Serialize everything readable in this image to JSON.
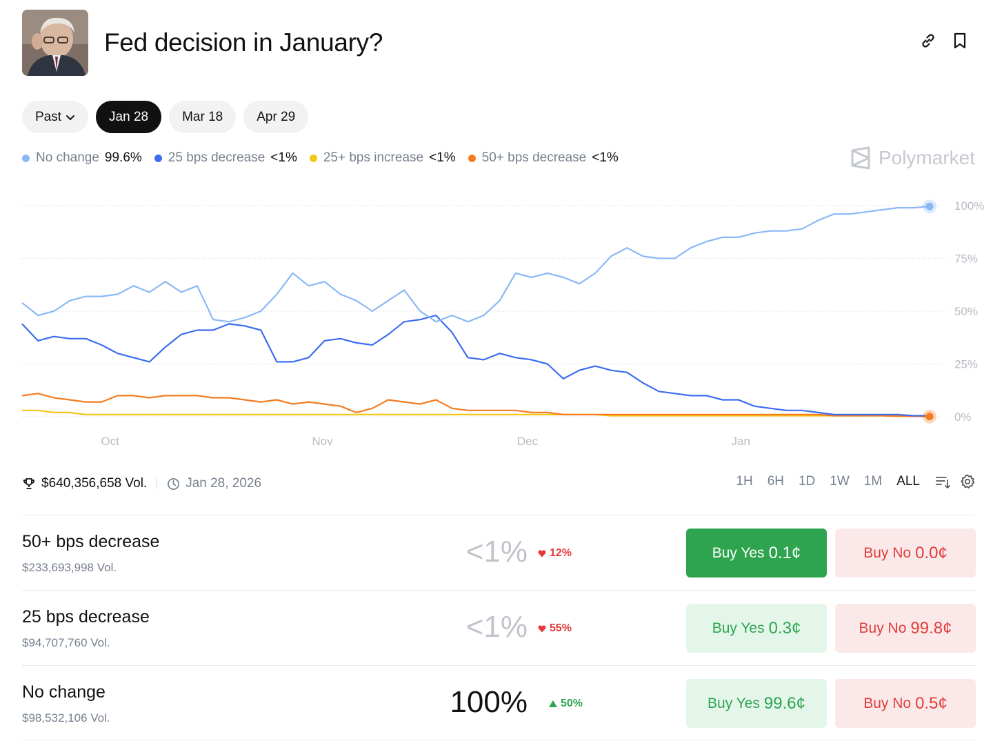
{
  "header": {
    "title": "Fed decision in January?"
  },
  "date_tabs": {
    "past_label": "Past",
    "tabs": [
      "Jan 28",
      "Mar 18",
      "Apr 29"
    ],
    "active": "Jan 28"
  },
  "legend": [
    {
      "name": "No change",
      "value": "99.6%",
      "color": "#8ab8f5"
    },
    {
      "name": "25 bps decrease",
      "value": "<1%",
      "color": "#3c6cf0"
    },
    {
      "name": "25+ bps increase",
      "value": "<1%",
      "color": "#f5c518"
    },
    {
      "name": "50+ bps decrease",
      "value": "<1%",
      "color": "#f57c1f"
    }
  ],
  "brand": "Polymarket",
  "chart_data": {
    "type": "line",
    "x_ticks": [
      "Oct",
      "Nov",
      "Dec",
      "Jan"
    ],
    "y_ticks": [
      "100%",
      "75%",
      "50%",
      "25%",
      "0%"
    ],
    "ylim": [
      0,
      100
    ],
    "grid": true,
    "series": [
      {
        "name": "No change",
        "color": "#8ab8f5",
        "values": [
          54,
          48,
          50,
          55,
          57,
          57,
          58,
          62,
          59,
          64,
          59,
          62,
          46,
          45,
          47,
          50,
          58,
          68,
          62,
          64,
          58,
          55,
          50,
          55,
          60,
          50,
          45,
          48,
          45,
          48,
          55,
          68,
          66,
          68,
          66,
          63,
          68,
          76,
          80,
          76,
          75,
          75,
          80,
          83,
          85,
          85,
          87,
          88,
          88,
          89,
          93,
          96,
          96,
          97,
          98,
          99,
          99,
          99.6
        ]
      },
      {
        "name": "25 bps decrease",
        "color": "#3c6cf0",
        "values": [
          44,
          36,
          38,
          37,
          37,
          34,
          30,
          28,
          26,
          33,
          39,
          41,
          41,
          44,
          43,
          41,
          26,
          26,
          28,
          36,
          37,
          35,
          34,
          39,
          45,
          46,
          48,
          40,
          28,
          27,
          30,
          28,
          27,
          25,
          18,
          22,
          24,
          22,
          21,
          16,
          12,
          11,
          10,
          10,
          8,
          8,
          5,
          4,
          3,
          3,
          2,
          1,
          1,
          1,
          1,
          1,
          0.5,
          0.5
        ]
      },
      {
        "name": "25+ bps increase",
        "color": "#f5c518",
        "values": [
          3,
          3,
          2,
          2,
          1,
          1,
          1,
          1,
          1,
          1,
          1,
          1,
          1,
          1,
          1,
          1,
          1,
          1,
          1,
          1,
          1,
          1,
          1,
          1,
          1,
          1,
          1,
          1,
          1,
          1,
          1,
          1,
          1,
          1,
          1,
          1,
          1,
          0.5,
          0.5,
          0.5,
          0.5,
          0.5,
          0.5,
          0.5,
          0.5,
          0.5,
          0.5,
          0.5,
          0.5,
          0.5,
          0.5,
          0.5,
          0.5,
          0.5,
          0.5,
          0.3,
          0.3,
          0.3
        ]
      },
      {
        "name": "50+ bps decrease",
        "color": "#f57c1f",
        "values": [
          10,
          11,
          9,
          8,
          7,
          7,
          10,
          10,
          9,
          10,
          10,
          10,
          9,
          9,
          8,
          7,
          8,
          6,
          7,
          6,
          5,
          2,
          4,
          8,
          7,
          6,
          8,
          4,
          3,
          3,
          3,
          3,
          2,
          2,
          1,
          1,
          1,
          1,
          1,
          1,
          1,
          1,
          1,
          1,
          1,
          1,
          1,
          1,
          1,
          1,
          1,
          0.5,
          0.5,
          0.5,
          0.5,
          0.3,
          0.2,
          0.1
        ]
      }
    ]
  },
  "meta": {
    "volume": "$640,356,658 Vol.",
    "end_date": "Jan 28, 2026",
    "ranges": [
      "1H",
      "6H",
      "1D",
      "1W",
      "1M",
      "ALL"
    ],
    "active_range": "ALL"
  },
  "outcomes": [
    {
      "name": "50+ bps decrease",
      "volume": "$233,693,998 Vol.",
      "pct": "<1%",
      "change": "12%",
      "direction": "down",
      "yes_label": "Buy Yes",
      "yes_price": "0.1¢",
      "no_label": "Buy No",
      "no_price": "0.0¢"
    },
    {
      "name": "25 bps decrease",
      "volume": "$94,707,760 Vol.",
      "pct": "<1%",
      "change": "55%",
      "direction": "down",
      "yes_label": "Buy Yes",
      "yes_price": "0.3¢",
      "no_label": "Buy No",
      "no_price": "99.8¢"
    },
    {
      "name": "No change",
      "volume": "$98,532,106 Vol.",
      "pct": "100%",
      "change": "50%",
      "direction": "up",
      "yes_label": "Buy Yes",
      "yes_price": "99.6¢",
      "no_label": "Buy No",
      "no_price": "0.5¢"
    }
  ]
}
